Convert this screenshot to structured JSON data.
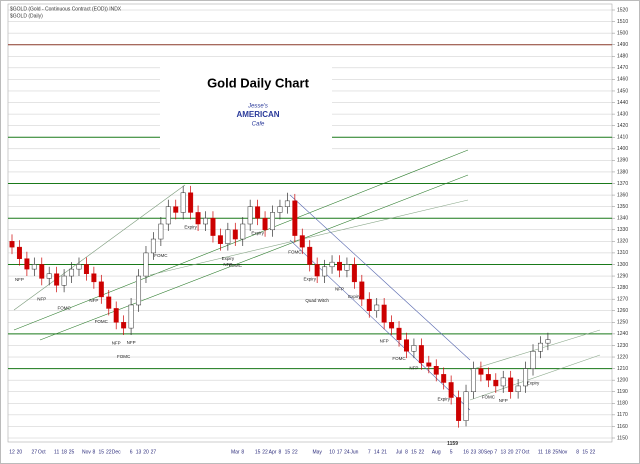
{
  "chart_data": {
    "type": "candlestick",
    "header": "$GOLD (Gold - Continuous Contract (EOD)) INDX",
    "subheader": "$GOLD (Daily)",
    "title": "Gold Daily Chart",
    "logo": [
      "Jesse's",
      "AMERICAN",
      "Cafe"
    ],
    "low_label": "1159",
    "annotations": [
      "NFP",
      "NFP",
      "FOMC",
      "NFP",
      "FOMC",
      "NFP",
      "FOMC",
      "NFP",
      "FOMC",
      "Expiry",
      "Expiry",
      "NFP",
      "FOMC",
      "Expiry",
      "FOMC",
      "Expiry",
      "Quad Witch",
      "NFP",
      "Expiry",
      "NFP",
      "FOMC",
      "NFP",
      "Expiry",
      "FOMC",
      "NFP",
      "Expiry"
    ],
    "categories": [
      "12",
      "20",
      null,
      "27",
      "Oct",
      null,
      "11",
      "18",
      "25",
      null,
      "Nov",
      "8",
      "15",
      "22",
      "Dec",
      null,
      "6",
      "13",
      "20",
      "27",
      null,
      null,
      null,
      null,
      null,
      null,
      null,
      null,
      null,
      null,
      "Mar",
      "8",
      null,
      "15",
      "22",
      "Apr",
      "8",
      "15",
      "22",
      null,
      null,
      "May",
      null,
      "10",
      "17",
      "24",
      "Jun",
      null,
      "7",
      "14",
      "21",
      null,
      "Jul",
      "8",
      "15",
      "22",
      null,
      "Aug",
      null,
      "5",
      null,
      "16",
      "23",
      "30",
      "Sep",
      "7",
      "13",
      "20",
      "27",
      "Oct",
      null,
      "11",
      "18",
      "25",
      "Nov",
      null,
      "8",
      "15",
      "22",
      null
    ],
    "open": [
      1320,
      1315,
      1305,
      1296,
      1300,
      1288,
      1292,
      1282,
      1290,
      1296,
      1300,
      1292,
      1285,
      1272,
      1262,
      1250,
      1245,
      1265,
      1290,
      1310,
      1322,
      1335,
      1350,
      1345,
      1362,
      1345,
      1335,
      1340,
      1325,
      1318,
      1330,
      1322,
      1335,
      1350,
      1340,
      1330,
      1345,
      1350,
      1355,
      1325,
      1315,
      1300,
      1290,
      1298,
      1302,
      1295,
      1300,
      1285,
      1270,
      1260,
      1265,
      1250,
      1245,
      1235,
      1225,
      1230,
      1215,
      1212,
      1205,
      1198,
      1185,
      1165,
      1190,
      1210,
      1205,
      1200,
      1195,
      1202,
      1190,
      1195,
      1210,
      1225,
      1232,
      null,
      null,
      null,
      null,
      null,
      null,
      null
    ],
    "high": [
      1326,
      1321,
      1311,
      1306,
      1306,
      1298,
      1298,
      1296,
      1302,
      1306,
      1306,
      1298,
      1291,
      1278,
      1268,
      1256,
      1271,
      1296,
      1316,
      1328,
      1341,
      1356,
      1356,
      1368,
      1368,
      1351,
      1346,
      1346,
      1331,
      1336,
      1336,
      1341,
      1356,
      1356,
      1346,
      1351,
      1356,
      1362,
      1361,
      1331,
      1321,
      1306,
      1304,
      1308,
      1308,
      1306,
      1306,
      1291,
      1276,
      1271,
      1271,
      1256,
      1251,
      1241,
      1236,
      1236,
      1221,
      1218,
      1211,
      1204,
      1191,
      1196,
      1216,
      1216,
      1211,
      1206,
      1208,
      1208,
      1201,
      1216,
      1231,
      1238,
      1241,
      null,
      null,
      null,
      null,
      null,
      null,
      null
    ],
    "low": [
      1309,
      1299,
      1290,
      1290,
      1282,
      1282,
      1276,
      1276,
      1284,
      1290,
      1286,
      1279,
      1266,
      1256,
      1244,
      1239,
      1239,
      1259,
      1284,
      1304,
      1316,
      1329,
      1339,
      1339,
      1339,
      1329,
      1329,
      1319,
      1312,
      1312,
      1316,
      1316,
      1329,
      1334,
      1324,
      1324,
      1339,
      1344,
      1319,
      1309,
      1294,
      1284,
      1284,
      1292,
      1289,
      1289,
      1279,
      1264,
      1254,
      1254,
      1244,
      1239,
      1229,
      1219,
      1219,
      1209,
      1206,
      1199,
      1192,
      1179,
      1159,
      1160,
      1184,
      1199,
      1194,
      1189,
      1189,
      1184,
      1184,
      1189,
      1204,
      1219,
      1226,
      null,
      null,
      null,
      null,
      null,
      null,
      null
    ],
    "close": [
      1315,
      1305,
      1296,
      1300,
      1288,
      1292,
      1282,
      1290,
      1296,
      1300,
      1292,
      1285,
      1272,
      1262,
      1250,
      1245,
      1265,
      1290,
      1310,
      1322,
      1335,
      1350,
      1345,
      1362,
      1345,
      1335,
      1340,
      1325,
      1318,
      1330,
      1322,
      1335,
      1350,
      1340,
      1330,
      1345,
      1350,
      1355,
      1325,
      1315,
      1300,
      1290,
      1298,
      1302,
      1295,
      1300,
      1285,
      1270,
      1260,
      1265,
      1250,
      1245,
      1235,
      1225,
      1230,
      1215,
      1212,
      1205,
      1198,
      1185,
      1165,
      1190,
      1210,
      1205,
      1200,
      1195,
      1202,
      1190,
      1195,
      1210,
      1225,
      1232,
      1235,
      null,
      null,
      null,
      null,
      null,
      null,
      null
    ],
    "up_color": "#ffffff",
    "down_color": "#cc0000",
    "levels": [
      {
        "value": 1490,
        "color": "#8b3a2a"
      },
      {
        "value": 1410,
        "color": "#1a7a1a"
      },
      {
        "value": 1370,
        "color": "#1a7a1a"
      },
      {
        "value": 1340,
        "color": "#1a7a1a"
      },
      {
        "value": 1300,
        "color": "#1a7a1a"
      },
      {
        "value": 1240,
        "color": "#1a7a1a"
      },
      {
        "value": 1210,
        "color": "#1a7a1a"
      }
    ],
    "ylim": [
      1150,
      1520
    ],
    "yticks": [
      1150,
      1160,
      1170,
      1180,
      1190,
      1200,
      1210,
      1220,
      1230,
      1240,
      1250,
      1260,
      1270,
      1280,
      1290,
      1300,
      1310,
      1320,
      1330,
      1340,
      1350,
      1360,
      1370,
      1380,
      1390,
      1400,
      1410,
      1420,
      1430,
      1440,
      1450,
      1460,
      1470,
      1480,
      1490,
      1500,
      1510,
      1520
    ],
    "grid": true
  }
}
